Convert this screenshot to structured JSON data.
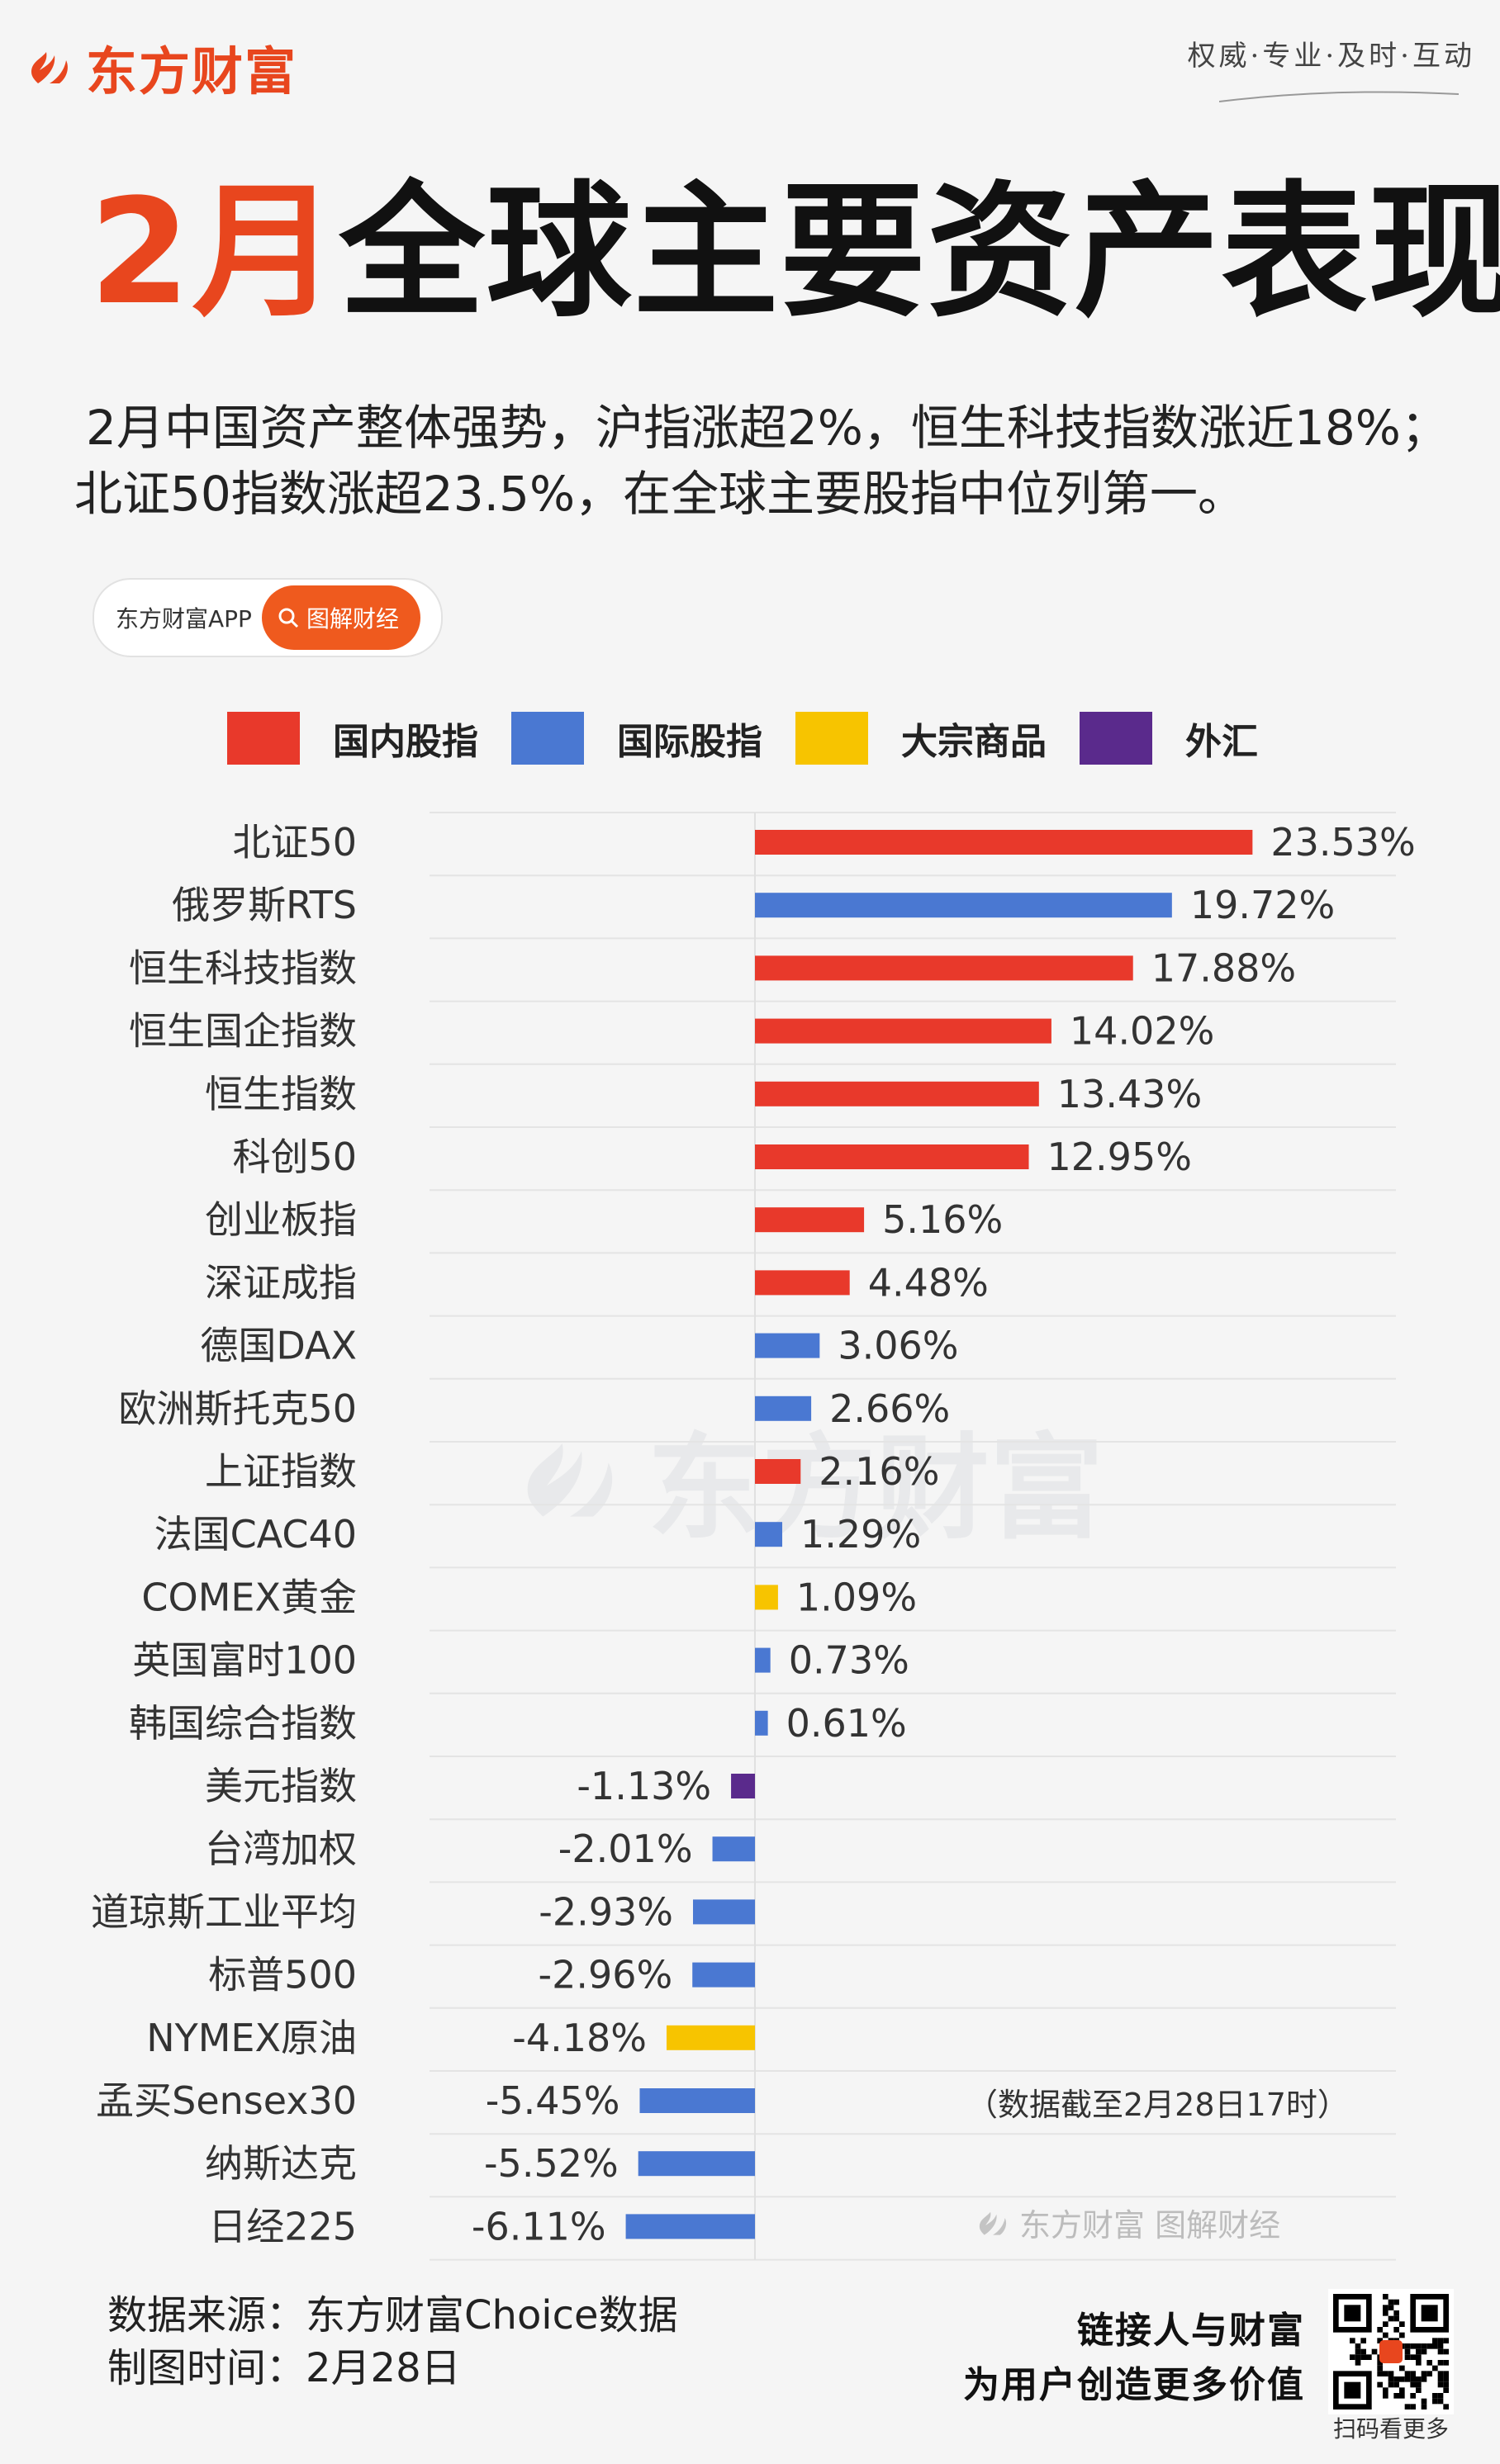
{
  "brand": {
    "name": "东方财富"
  },
  "slogan": "权威·专业·及时·互动",
  "headline": {
    "accent": "2月",
    "rest": "全球主要资产表现"
  },
  "intro": {
    "line1": "2月中国资产整体强势，沪指涨超2%，恒生科技指数涨近18%；",
    "line2": "北证50指数涨超23.5%，在全球主要股指中位列第一。"
  },
  "pill": {
    "app": "东方财富APP",
    "tag": "图解财经"
  },
  "legend": [
    {
      "label": "国内股指",
      "color": "#e8392b"
    },
    {
      "label": "国际股指",
      "color": "#4a78d2"
    },
    {
      "label": "大宗商品",
      "color": "#f7c400"
    },
    {
      "label": "外汇",
      "color": "#5a2a8c"
    }
  ],
  "chart_data": {
    "type": "bar",
    "orientation": "horizontal",
    "unit": "%",
    "categories": [
      "北证50",
      "俄罗斯RTS",
      "恒生科技指数",
      "恒生国企指数",
      "恒生指数",
      "科创50",
      "创业板指",
      "深证成指",
      "德国DAX",
      "欧洲斯托克50",
      "上证指数",
      "法国CAC40",
      "COMEX黄金",
      "英国富时100",
      "韩国综合指数",
      "美元指数",
      "台湾加权",
      "道琼斯工业平均",
      "标普500",
      "NYMEX原油",
      "孟买Sensex30",
      "纳斯达克",
      "日经225"
    ],
    "values": [
      23.53,
      19.72,
      17.88,
      14.02,
      13.43,
      12.95,
      5.16,
      4.48,
      3.06,
      2.66,
      2.16,
      1.29,
      1.09,
      0.73,
      0.61,
      -1.13,
      -2.01,
      -2.93,
      -2.96,
      -4.18,
      -5.45,
      -5.52,
      -6.11
    ],
    "labels": [
      "23.53%",
      "19.72%",
      "17.88%",
      "14.02%",
      "13.43%",
      "12.95%",
      "5.16%",
      "4.48%",
      "3.06%",
      "2.66%",
      "2.16%",
      "1.29%",
      "1.09%",
      "0.73%",
      "0.61%",
      "-1.13%",
      "-2.01%",
      "-2.93%",
      "-2.96%",
      "-4.18%",
      "-5.45%",
      "-5.52%",
      "-6.11%"
    ],
    "groups": [
      "国内股指",
      "国际股指",
      "国内股指",
      "国内股指",
      "国内股指",
      "国内股指",
      "国内股指",
      "国内股指",
      "国际股指",
      "国际股指",
      "国内股指",
      "国际股指",
      "大宗商品",
      "国际股指",
      "国际股指",
      "外汇",
      "国际股指",
      "国际股指",
      "国际股指",
      "大宗商品",
      "国际股指",
      "国际股指",
      "国际股指"
    ],
    "grid": true,
    "legend_position": "top"
  },
  "note": "（数据截至2月28日17时）",
  "brand_sig": "东方财富 图解财经",
  "watermark": "东方财富",
  "footer": {
    "source": "数据来源：东方财富Choice数据",
    "date": "制图时间：2月28日",
    "slogan_line1": "链接人与财富",
    "slogan_line2": "为用户创造更多价值",
    "qr_caption": "扫码看更多"
  }
}
